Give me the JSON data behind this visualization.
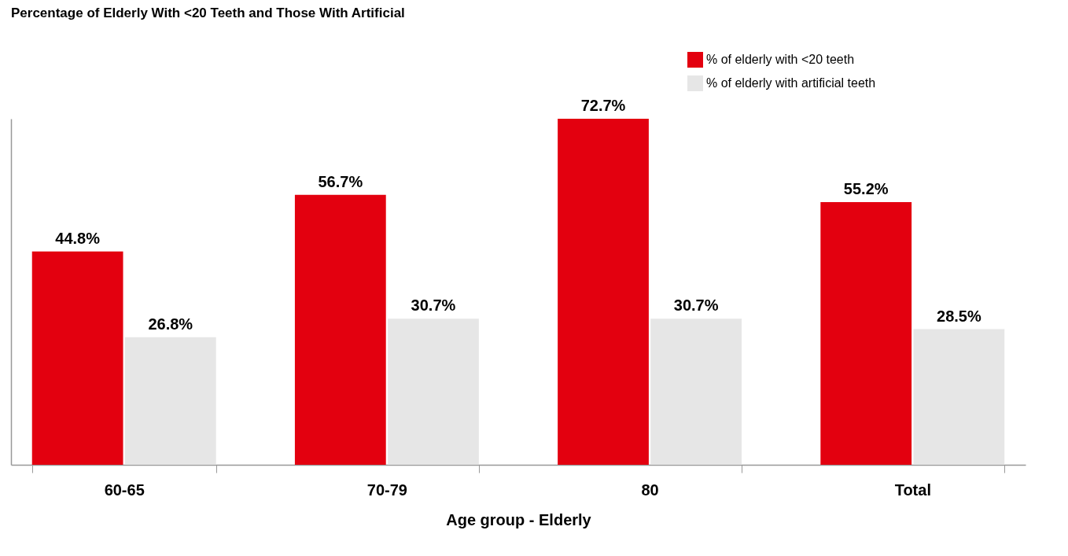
{
  "chart_data": {
    "type": "bar",
    "title": "Percentage of Elderly With <20 Teeth and Those With Artificial",
    "xlabel": "Age group - Elderly",
    "categories": [
      "60-65",
      "70-79",
      "80",
      "Total"
    ],
    "series": [
      {
        "name": "% of elderly with <20 teeth",
        "color": "#e3000f",
        "values": [
          44.8,
          56.7,
          72.7,
          55.2
        ],
        "value_labels": [
          "44.8%",
          "56.7%",
          "72.7%",
          "55.2%"
        ]
      },
      {
        "name": "% of elderly with artificial teeth",
        "color": "#e6e6e6",
        "values": [
          26.8,
          30.7,
          30.7,
          28.5
        ],
        "value_labels": [
          "26.8%",
          "30.7%",
          "30.7%",
          "28.5%"
        ]
      }
    ],
    "tick_labels": "x",
    "legend": "top right"
  }
}
